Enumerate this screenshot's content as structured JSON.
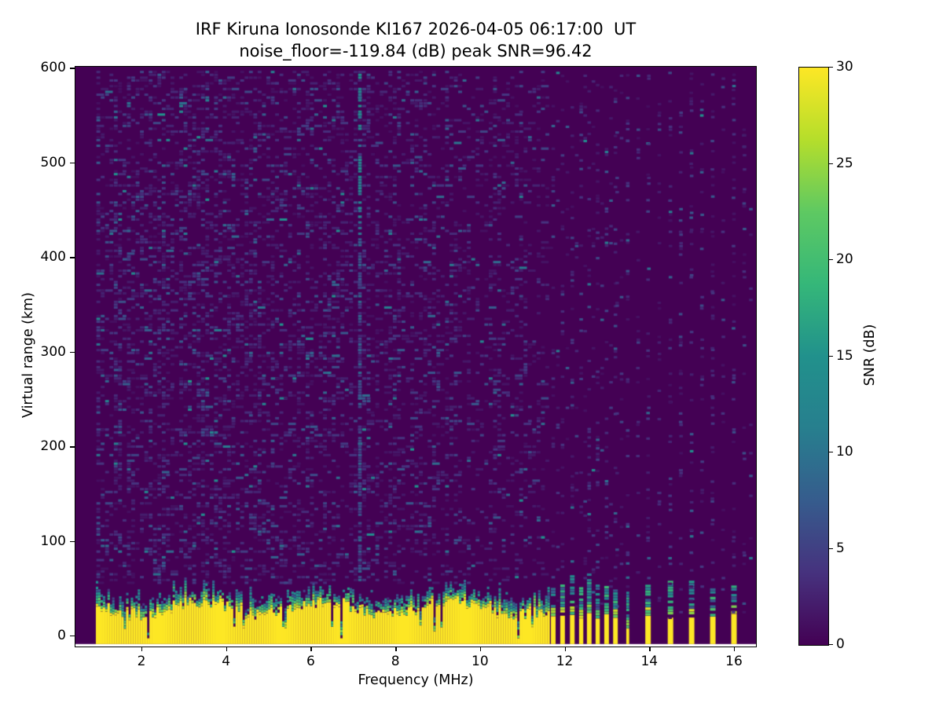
{
  "figure": {
    "station": "IRF Kiruna Ionosonde KI167",
    "timestamp_ut": "2026-04-05 06:17:00",
    "noise_floor_db": -119.84,
    "peak_snr_db": 96.42
  },
  "chart_data": {
    "type": "heatmap",
    "title": "IRF Kiruna Ionosonde KI167 2026-04-05 06:17:00  UT",
    "subtitle": "noise_floor=-119.84 (dB) peak SNR=96.42",
    "xlabel": "Frequency (MHz)",
    "ylabel": "Virtual range (km)",
    "colorbar_label": "SNR (dB)",
    "xlim": [
      0.44,
      16.52
    ],
    "ylim": [
      -11.6,
      600
    ],
    "clim": [
      0,
      30
    ],
    "x_ticks": [
      2,
      4,
      6,
      8,
      10,
      12,
      14,
      16
    ],
    "y_ticks": [
      0,
      100,
      200,
      300,
      400,
      500,
      600
    ],
    "colorbar_ticks": [
      0,
      5,
      10,
      15,
      20,
      25,
      30
    ],
    "colormap": "viridis",
    "viridis_stops": [
      {
        "t": 0.0,
        "c": "#440154"
      },
      {
        "t": 0.125,
        "c": "#46327e"
      },
      {
        "t": 0.25,
        "c": "#365c8d"
      },
      {
        "t": 0.375,
        "c": "#277f8e"
      },
      {
        "t": 0.5,
        "c": "#21918c"
      },
      {
        "t": 0.625,
        "c": "#35b779"
      },
      {
        "t": 0.75,
        "c": "#5ec962"
      },
      {
        "t": 0.875,
        "c": "#b5de2b"
      },
      {
        "t": 1.0,
        "c": "#fde725"
      }
    ],
    "features": {
      "background_snr_db": 0,
      "no_data_below_mhz": 0.95,
      "continuous_sweep_mhz": [
        0.95,
        11.6
      ],
      "interference_column_mhz": 7.15,
      "ground_clutter_band": {
        "saturated_snr_db": 30,
        "saturated_top_km_mean": 28,
        "transition_top_km_mean": 48,
        "bottom_km": -9
      },
      "stepped_stripes": [
        {
          "f": 11.73,
          "w_mhz": 0.11,
          "clutter_top_km": 20
        },
        {
          "f": 11.95,
          "w_mhz": 0.11,
          "clutter_top_km": 21
        },
        {
          "f": 12.18,
          "w_mhz": 0.11,
          "clutter_top_km": 22
        },
        {
          "f": 12.39,
          "w_mhz": 0.1,
          "clutter_top_km": 20
        },
        {
          "f": 12.58,
          "w_mhz": 0.11,
          "clutter_top_km": 22
        },
        {
          "f": 12.78,
          "w_mhz": 0.1,
          "clutter_top_km": 19
        },
        {
          "f": 12.99,
          "w_mhz": 0.11,
          "clutter_top_km": 21
        },
        {
          "f": 13.2,
          "w_mhz": 0.11,
          "clutter_top_km": 20
        },
        {
          "f": 13.49,
          "w_mhz": 0.07,
          "clutter_top_km": 8
        },
        {
          "f": 13.97,
          "w_mhz": 0.13,
          "clutter_top_km": 21
        },
        {
          "f": 14.5,
          "w_mhz": 0.13,
          "clutter_top_km": 18
        },
        {
          "f": 15.0,
          "w_mhz": 0.13,
          "clutter_top_km": 20
        },
        {
          "f": 15.5,
          "w_mhz": 0.13,
          "clutter_top_km": 21
        },
        {
          "f": 16.0,
          "w_mhz": 0.13,
          "clutter_top_km": 22
        }
      ]
    }
  }
}
